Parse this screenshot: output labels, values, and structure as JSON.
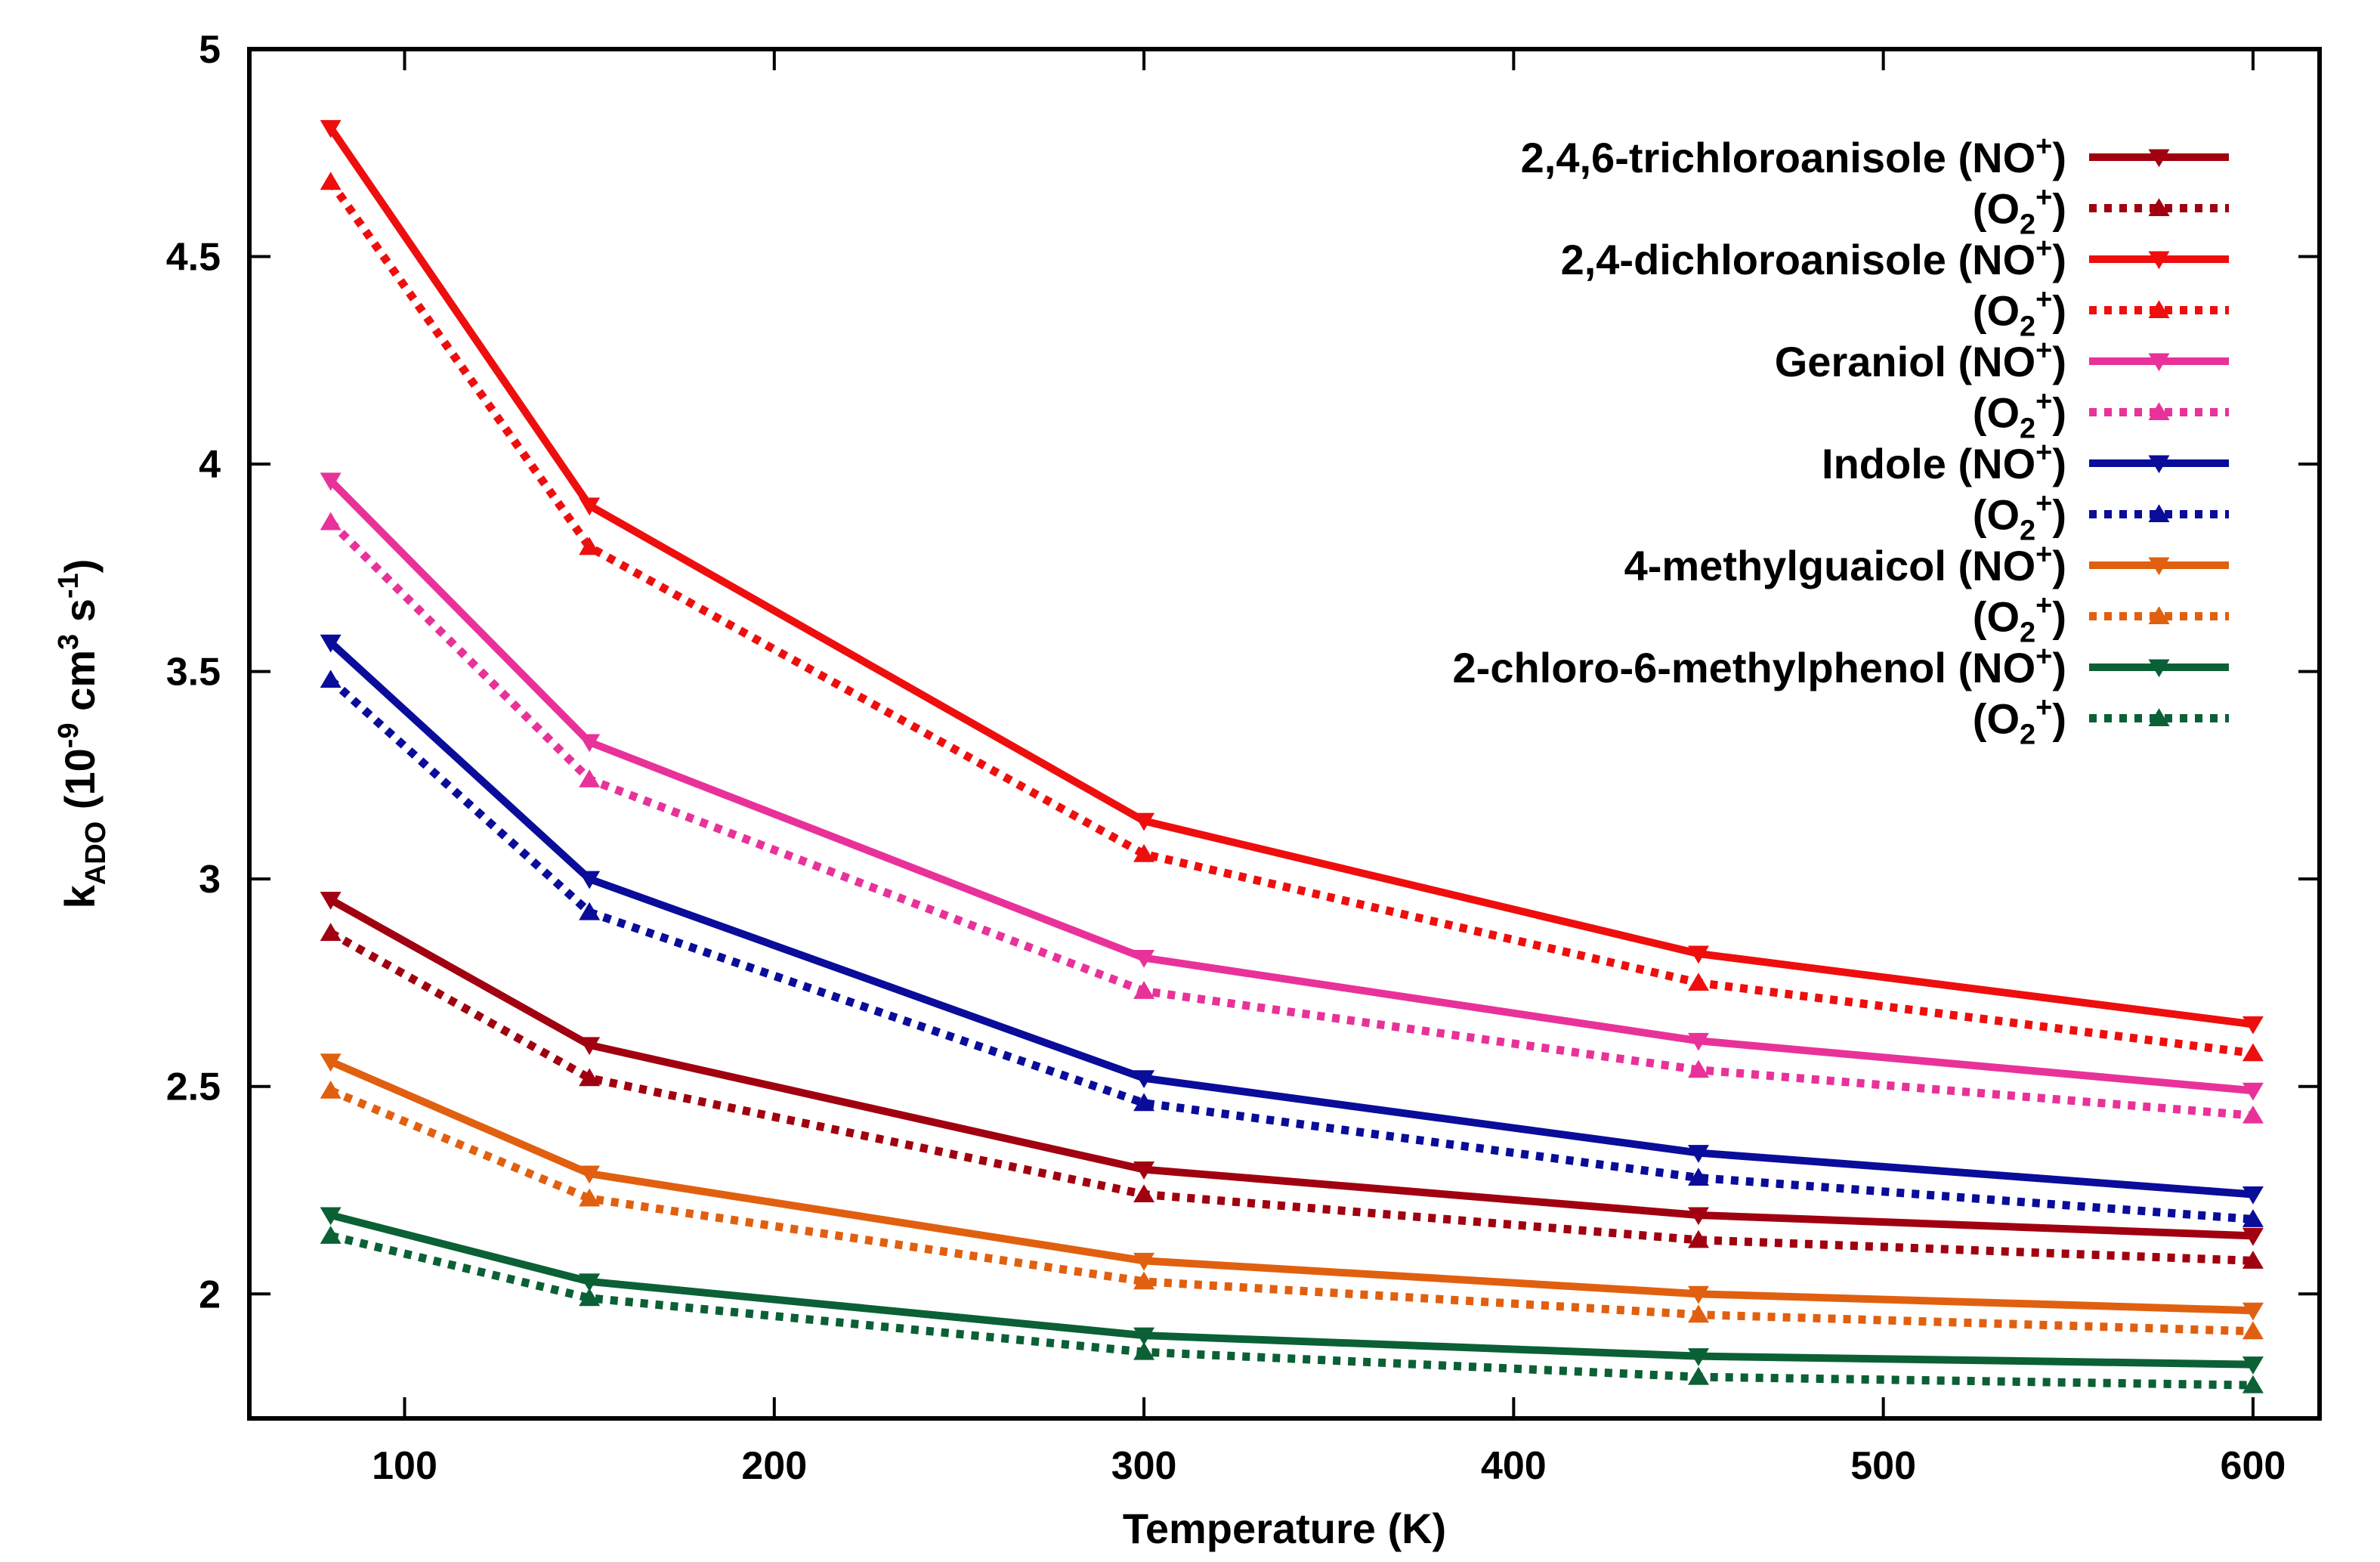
{
  "chart_data": {
    "type": "line",
    "xlabel": "Temperature (K)",
    "ylabel": {
      "main": "k",
      "sub": "ADO",
      "rest": "(10",
      "exp1": "-9",
      "mid": "cm",
      "exp2": "3",
      "unit": "s",
      "exp3": "-1",
      "close": ")"
    },
    "xlim": [
      58,
      618
    ],
    "ylim": [
      1.7,
      5
    ],
    "xticks": [
      100,
      200,
      300,
      400,
      500,
      600
    ],
    "yticks": [
      "2",
      "2.5",
      "3",
      "3.5",
      "4",
      "4.5",
      "5"
    ],
    "x": [
      80,
      150,
      300,
      450,
      600
    ],
    "grid": false,
    "legend_position": "top-right",
    "series": [
      {
        "name": "2,4,6-trichloroanisole",
        "ion": "NO",
        "ion_sup": "+",
        "color": "#a00010",
        "style": "solid",
        "marker": "down-triangle",
        "values": [
          2.95,
          2.6,
          2.3,
          2.19,
          2.14
        ]
      },
      {
        "name": "",
        "ion": "O",
        "ion_sub": "2",
        "ion_sup": "+",
        "color": "#a00010",
        "style": "dotted",
        "marker": "up-triangle",
        "values": [
          2.87,
          2.52,
          2.24,
          2.13,
          2.08
        ]
      },
      {
        "name": "2,4-dichloroanisole",
        "ion": "NO",
        "ion_sup": "+",
        "color": "#ee0e0e",
        "style": "solid",
        "marker": "down-triangle",
        "values": [
          4.81,
          3.9,
          3.14,
          2.82,
          2.65
        ]
      },
      {
        "name": "",
        "ion": "O",
        "ion_sub": "2",
        "ion_sup": "+",
        "color": "#ee0e0e",
        "style": "dotted",
        "marker": "up-triangle",
        "values": [
          4.68,
          3.8,
          3.06,
          2.75,
          2.58
        ]
      },
      {
        "name": "Geraniol",
        "ion": "NO",
        "ion_sup": "+",
        "color": "#e8329a",
        "style": "solid",
        "marker": "down-triangle",
        "values": [
          3.96,
          3.33,
          2.81,
          2.61,
          2.49
        ]
      },
      {
        "name": "",
        "ion": "O",
        "ion_sub": "2",
        "ion_sup": "+",
        "color": "#e8329a",
        "style": "dotted",
        "marker": "up-triangle",
        "values": [
          3.86,
          3.24,
          2.73,
          2.54,
          2.43
        ]
      },
      {
        "name": "Indole",
        "ion": "NO",
        "ion_sup": "+",
        "color": "#0a0c9a",
        "style": "solid",
        "marker": "down-triangle",
        "values": [
          3.57,
          3.0,
          2.52,
          2.34,
          2.24
        ]
      },
      {
        "name": "",
        "ion": "O",
        "ion_sub": "2",
        "ion_sup": "+",
        "color": "#0a0c9a",
        "style": "dotted",
        "marker": "up-triangle",
        "values": [
          3.48,
          2.92,
          2.46,
          2.28,
          2.18
        ]
      },
      {
        "name": "4-methylguaicol",
        "ion": "NO",
        "ion_sup": "+",
        "color": "#e06010",
        "style": "solid",
        "marker": "down-triangle",
        "values": [
          2.56,
          2.29,
          2.08,
          2.0,
          1.96
        ]
      },
      {
        "name": "",
        "ion": "O",
        "ion_sub": "2",
        "ion_sup": "+",
        "color": "#e06010",
        "style": "dotted",
        "marker": "up-triangle",
        "values": [
          2.49,
          2.23,
          2.03,
          1.95,
          1.91
        ]
      },
      {
        "name": "2-chloro-6-methylphenol",
        "ion": "NO",
        "ion_sup": "+",
        "color": "#0b6035",
        "style": "solid",
        "marker": "down-triangle",
        "values": [
          2.19,
          2.03,
          1.9,
          1.85,
          1.83
        ]
      },
      {
        "name": "",
        "ion": "O",
        "ion_sub": "2",
        "ion_sup": "+",
        "color": "#0b6035",
        "style": "dotted",
        "marker": "up-triangle",
        "values": [
          2.14,
          1.99,
          1.86,
          1.8,
          1.78
        ]
      }
    ]
  }
}
